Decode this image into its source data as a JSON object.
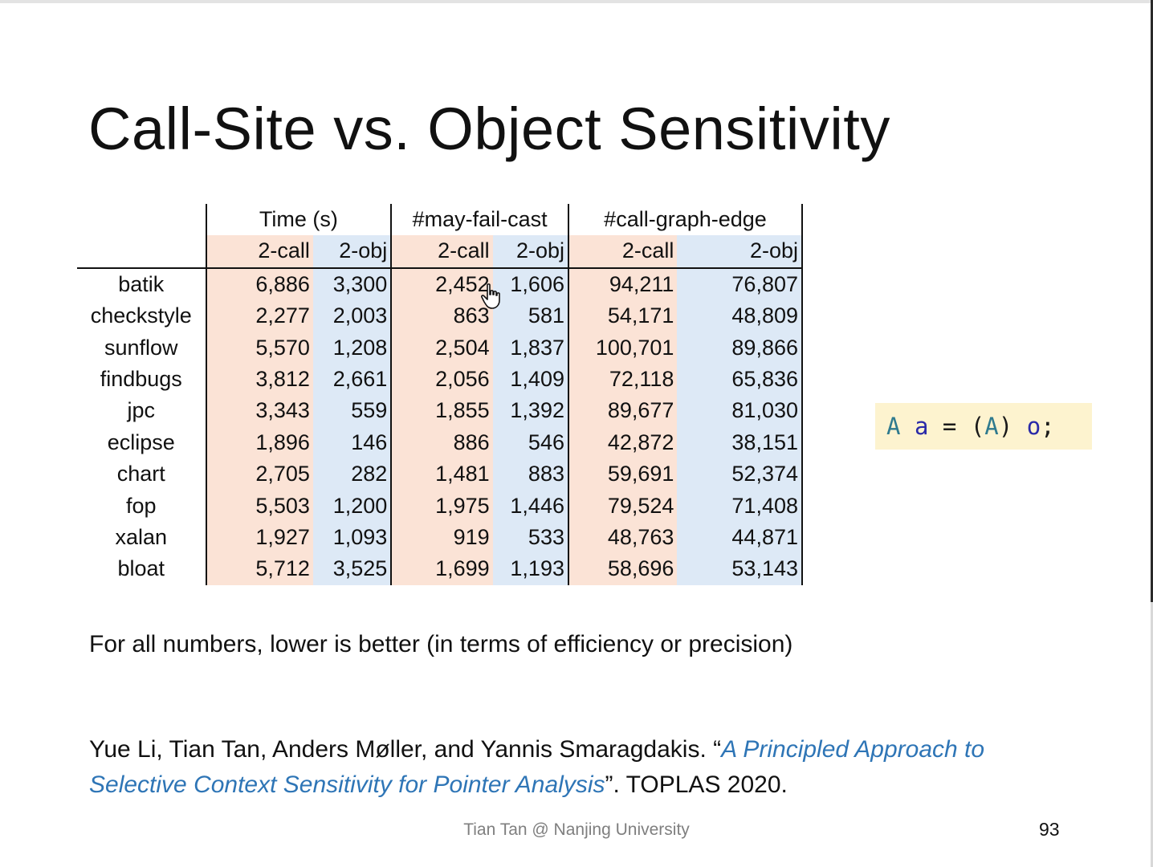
{
  "slide": {
    "title": "Call-Site vs. Object Sensitivity",
    "table": {
      "groups": [
        "Time (s)",
        "#may-fail-cast",
        "#call-graph-edge"
      ],
      "subheaders": [
        "2-call",
        "2-obj",
        "2-call",
        "2-obj",
        "2-call",
        "2-obj"
      ],
      "rows": [
        {
          "name": "batik",
          "values": [
            "6,886",
            "3,300",
            "2,452",
            "1,606",
            "94,211",
            "76,807"
          ]
        },
        {
          "name": "checkstyle",
          "values": [
            "2,277",
            "2,003",
            "863",
            "581",
            "54,171",
            "48,809"
          ]
        },
        {
          "name": "sunflow",
          "values": [
            "5,570",
            "1,208",
            "2,504",
            "1,837",
            "100,701",
            "89,866"
          ]
        },
        {
          "name": "findbugs",
          "values": [
            "3,812",
            "2,661",
            "2,056",
            "1,409",
            "72,118",
            "65,836"
          ]
        },
        {
          "name": "jpc",
          "values": [
            "3,343",
            "559",
            "1,855",
            "1,392",
            "89,677",
            "81,030"
          ]
        },
        {
          "name": "eclipse",
          "values": [
            "1,896",
            "146",
            "886",
            "546",
            "42,872",
            "38,151"
          ]
        },
        {
          "name": "chart",
          "values": [
            "2,705",
            "282",
            "1,481",
            "883",
            "59,691",
            "52,374"
          ]
        },
        {
          "name": "fop",
          "values": [
            "5,503",
            "1,200",
            "1,975",
            "1,446",
            "79,524",
            "71,408"
          ]
        },
        {
          "name": "xalan",
          "values": [
            "1,927",
            "1,093",
            "919",
            "533",
            "48,763",
            "44,871"
          ]
        },
        {
          "name": "bloat",
          "values": [
            "5,712",
            "3,525",
            "1,699",
            "1,193",
            "58,696",
            "53,143"
          ]
        }
      ]
    },
    "code": {
      "type1": "A",
      "var1": "a",
      "eq": "=",
      "cast_open": "(",
      "type2": "A",
      "cast_close": ")",
      "var2": "o",
      "semi": ";"
    },
    "note": "For all numbers, lower is better (in terms of efficiency or precision)",
    "citation": {
      "authors": "Yue Li, Tian Tan, Anders Møller, and Yannis Smaragdakis. “",
      "paper_title": "A Principled Approach to Selective Context Sensitivity for Pointer Analysis",
      "venue": "”. TOPLAS 2020."
    },
    "footer": "Tian Tan @ Nanjing University",
    "page_number": "93",
    "colors": {
      "two_call_shade": "#fbe3d6",
      "two_obj_shade": "#dde9f6",
      "code_bg": "#fdf3cf",
      "link": "#2e75b6"
    }
  }
}
